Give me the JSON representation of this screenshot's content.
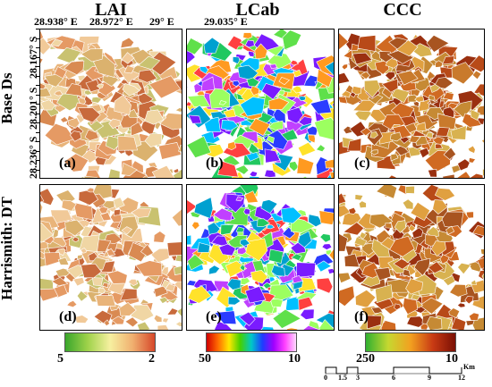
{
  "columns": {
    "lai": "LAI",
    "lcab": "LCab",
    "ccc": "CCC"
  },
  "rows": {
    "top": "Base Ds",
    "bottom": "Harrismith: DT"
  },
  "coordinates": {
    "longitude": [
      "28.938° E",
      "28.972° E",
      "29° E",
      "29.035° E"
    ],
    "latitude": [
      "28.167° S",
      "28.201° S",
      "28.236° S"
    ]
  },
  "panels": {
    "a": "(a)",
    "b": "(b)",
    "c": "(c)",
    "d": "(d)",
    "e": "(e)",
    "f": "(f)"
  },
  "colorbars": {
    "lai": {
      "min_label": "5",
      "max_label": "2",
      "colors": [
        "#3aa62c",
        "#9fd24a",
        "#f6f0a0",
        "#f0b070",
        "#d6482a"
      ]
    },
    "lcab": {
      "min_label": "50",
      "max_label": "10",
      "colors": [
        "#d10000",
        "#ff6a00",
        "#ffe800",
        "#46d000",
        "#00c8c8",
        "#1d3cff",
        "#a000ff",
        "#ff40ff",
        "#ffd9ff"
      ]
    },
    "ccc": {
      "min_label": "250",
      "max_label": "10",
      "colors": [
        "#30b030",
        "#c6d830",
        "#f2a020",
        "#c83a14",
        "#7a1004"
      ]
    }
  },
  "scalebar": {
    "ticks": [
      "0",
      "1.5",
      "3",
      "6",
      "9",
      "12"
    ],
    "unit": "Km"
  }
}
